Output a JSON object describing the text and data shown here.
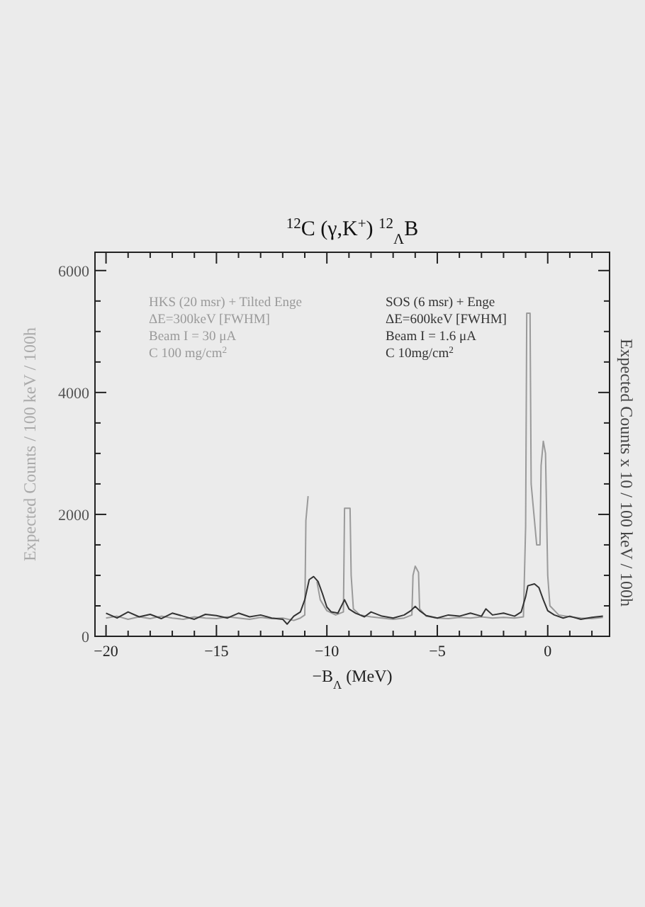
{
  "chart_data": {
    "type": "line",
    "title": "$^{12}$C (γ,K$^{+}$) $^{12}$$_{Λ}$B",
    "xlabel": "−B$_{Λ}$ (MeV)",
    "ylabel": "Expected Counts / 100 keV / 100h",
    "y2label": "Expected Counts x 10 / 100 keV / 100h",
    "annotations": [
      "ΔE=300keV [FWHM]",
      "Beam I = 30 μA",
      "C 100 mg/cm$^{2}$",
      "ΔE=600keV [FWHM]",
      "Beam I = 1.6 μA",
      "C 10mg/cm$^{2}$"
    ],
    "legend": "top",
    "xlim": [
      -20.5,
      2.8
    ],
    "xticks": [
      -20,
      {
        "value": -19,
        "label": null
      },
      {
        "value": -18,
        "label": null
      },
      {
        "value": -17,
        "label": null
      },
      {
        "value": -16,
        "label": null
      },
      -15,
      {
        "value": -14,
        "label": null
      },
      {
        "value": -13,
        "label": null
      },
      {
        "value": -12,
        "label": null
      },
      {
        "value": -11,
        "label": null
      },
      -10,
      {
        "value": -9,
        "label": null
      },
      {
        "value": -8,
        "label": null
      },
      {
        "value": -7,
        "label": null
      },
      {
        "value": -6,
        "label": null
      },
      -5,
      {
        "value": -4,
        "label": null
      },
      {
        "value": -3,
        "label": null
      },
      {
        "value": -2,
        "label": null
      },
      {
        "value": -1,
        "label": null
      },
      0,
      {
        "value": 1,
        "label": null
      },
      {
        "value": 2,
        "label": null
      }
    ],
    "ylim": [
      0,
      6300
    ],
    "yticks": [
      0,
      {
        "value": 500,
        "label": null
      },
      {
        "value": 1000,
        "label": null
      },
      {
        "value": 1500,
        "label": null
      },
      2000,
      {
        "value": 2500,
        "label": null
      },
      {
        "value": 3000,
        "label": null
      },
      {
        "value": 3500,
        "label": null
      },
      4000,
      {
        "value": 4500,
        "label": null
      },
      {
        "value": 5000,
        "label": null
      },
      {
        "value": 5500,
        "label": null
      },
      6000
    ],
    "series": [
      {
        "name": "HKS (20 msr) + Tilted Enge",
        "color": "#9a9a9a",
        "x": [
          -20,
          -19.5,
          -19,
          -18.5,
          -18,
          -17.5,
          -17,
          -16.5,
          -16,
          -15.5,
          -15,
          -14.5,
          -14,
          -13.5,
          -13,
          -12.5,
          -12,
          -11.5,
          -11.2,
          -11,
          -10.95,
          -10.85,
          -10.8,
          -10.5,
          -10.45,
          -10.3,
          -10,
          -9.6,
          -9.25,
          -9.2,
          -8.95,
          -8.9,
          -8.8,
          -8.5,
          -8,
          -7.5,
          -7,
          -6.5,
          -6.15,
          -6.1,
          -6,
          -5.85,
          -5.8,
          -5.5,
          -5,
          -4.5,
          -4,
          -3.5,
          -3,
          -2.5,
          -2,
          -1.5,
          -1.1,
          -1,
          -0.95,
          -0.8,
          -0.75,
          -0.5,
          -0.35,
          -0.3,
          -0.2,
          -0.1,
          0,
          0.1,
          0.5,
          1,
          1.5,
          2,
          2.5
        ],
        "values": [
          300,
          330,
          280,
          320,
          290,
          330,
          300,
          280,
          320,
          300,
          290,
          320,
          300,
          280,
          310,
          290,
          300,
          260,
          300,
          350,
          1900,
          2300,
          null,
          null,
          900,
          600,
          420,
          350,
          400,
          2100,
          2100,
          1000,
          450,
          350,
          320,
          300,
          280,
          300,
          350,
          1000,
          1150,
          1050,
          450,
          330,
          300,
          290,
          310,
          300,
          320,
          300,
          310,
          300,
          320,
          1800,
          5300,
          5300,
          2500,
          1500,
          1500,
          2800,
          3200,
          3000,
          1000,
          500,
          350,
          320,
          300,
          290,
          310
        ]
      },
      {
        "name": "SOS (6 msr) + Enge",
        "color": "#333333",
        "x": [
          -20,
          -19.5,
          -19,
          -18.5,
          -18,
          -17.5,
          -17,
          -16.5,
          -16,
          -15.5,
          -15,
          -14.5,
          -14,
          -13.5,
          -13,
          -12.5,
          -12,
          -11.8,
          -11.5,
          -11.2,
          -11,
          -10.8,
          -10.6,
          -10.4,
          -10.2,
          -10,
          -9.8,
          -9.5,
          -9.2,
          -9,
          -8.7,
          -8.3,
          -8,
          -7.5,
          -7,
          -6.5,
          -6.2,
          -6,
          -5.8,
          -5.5,
          -5,
          -4.5,
          -4,
          -3.5,
          -3,
          -2.8,
          -2.5,
          -2,
          -1.5,
          -1.2,
          -1,
          -0.9,
          -0.6,
          -0.4,
          -0.2,
          0,
          0.3,
          0.7,
          1,
          1.5,
          2,
          2.5
        ],
        "values": [
          380,
          300,
          400,
          320,
          360,
          290,
          380,
          330,
          280,
          360,
          340,
          300,
          380,
          320,
          350,
          300,
          280,
          200,
          330,
          400,
          600,
          930,
          980,
          900,
          700,
          480,
          400,
          380,
          600,
          450,
          380,
          320,
          400,
          330,
          300,
          350,
          420,
          490,
          420,
          340,
          300,
          350,
          330,
          380,
          330,
          450,
          350,
          380,
          330,
          400,
          650,
          830,
          860,
          800,
          600,
          420,
          350,
          300,
          330,
          280,
          310,
          330
        ]
      }
    ]
  }
}
